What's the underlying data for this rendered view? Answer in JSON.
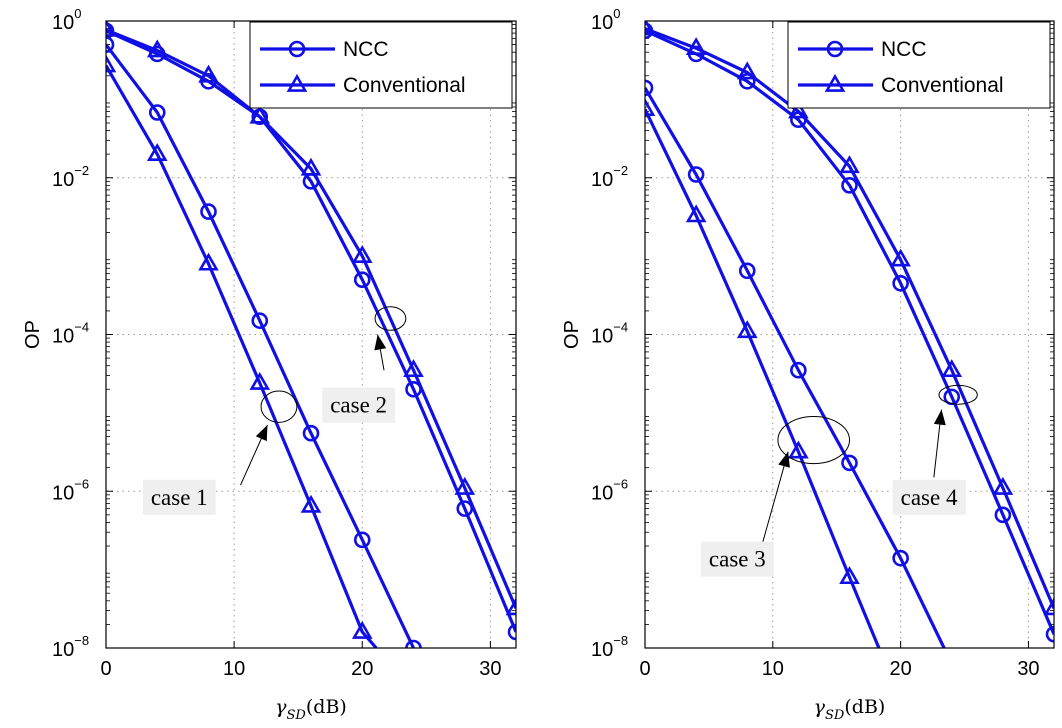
{
  "chart_data": [
    {
      "type": "line",
      "panel": "left",
      "ylabel": "OP",
      "xlabel": "γSD(dB)",
      "xlabel_parts": [
        "γ",
        "SD",
        "(dB)"
      ],
      "xlim": [
        0,
        32
      ],
      "ylim": [
        1e-08,
        1
      ],
      "yscale": "log",
      "grid": true,
      "legend_position": "top-right",
      "xticks": [
        0,
        10,
        20,
        30
      ],
      "yticks": [
        {
          "value": 1,
          "base": "10",
          "exp": "0"
        },
        {
          "value": 0.01,
          "base": "10",
          "exp": "−2"
        },
        {
          "value": 0.0001,
          "base": "10",
          "exp": "−4"
        },
        {
          "value": 1e-06,
          "base": "10",
          "exp": "−6"
        },
        {
          "value": 1e-08,
          "base": "10",
          "exp": "−8"
        }
      ],
      "series": [
        {
          "name": "NCC",
          "marker": "circle",
          "x": [
            0,
            4,
            8,
            12,
            16,
            20,
            24,
            28,
            32
          ],
          "y": [
            0.75,
            0.38,
            0.17,
            0.06,
            0.009,
            0.0005,
            2e-05,
            6e-07,
            1.6e-08
          ],
          "legend": true
        },
        {
          "name": "Conventional",
          "marker": "triangle",
          "x": [
            0,
            4,
            8,
            12,
            16,
            20,
            24,
            28,
            32
          ],
          "y": [
            0.77,
            0.42,
            0.2,
            0.06,
            0.013,
            0.001,
            3.5e-05,
            1.1e-06,
            3.2e-08
          ],
          "legend": true
        },
        {
          "name": "NCC",
          "marker": "circle",
          "x": [
            0,
            4,
            8,
            12,
            16,
            20,
            24
          ],
          "y": [
            0.5,
            0.068,
            0.0037,
            0.00015,
            5.5e-06,
            2.4e-07,
            1e-08
          ],
          "legend": false
        },
        {
          "name": "Conventional",
          "marker": "triangle",
          "x": [
            0,
            4,
            8,
            12,
            16,
            20,
            21.1
          ],
          "y": [
            0.27,
            0.02,
            0.0008,
            2.4e-05,
            6.5e-07,
            1.6e-08,
            1e-08
          ],
          "legend": false
        }
      ],
      "annotations": [
        {
          "text": "case 1",
          "ellipse": {
            "x": 13.5,
            "y": 1.2e-05,
            "rx": 1.4,
            "ry_dec": 0.2
          },
          "arrow_tip": {
            "x": 12.6,
            "y": 7e-06
          },
          "arrow_tail": {
            "x": 10.5,
            "y": 1.2e-06
          },
          "label": {
            "x": 3.5,
            "y": 8e-07
          }
        },
        {
          "text": "case 2",
          "ellipse": {
            "x": 22.2,
            "y": 0.00016,
            "rx": 1.2,
            "ry_dec": 0.15
          },
          "arrow_tip": {
            "x": 21.2,
            "y": 0.0001
          },
          "arrow_tail": {
            "x": 21.7,
            "y": 3.5e-05
          },
          "label": {
            "x": 17.5,
            "y": 1.2e-05
          }
        }
      ]
    },
    {
      "type": "line",
      "panel": "right",
      "ylabel": "OP",
      "xlabel": "γSD(dB)",
      "xlabel_parts": [
        "γ",
        "SD",
        "(dB)"
      ],
      "xlim": [
        0,
        32
      ],
      "ylim": [
        1e-08,
        1
      ],
      "yscale": "log",
      "grid": true,
      "legend_position": "top-right",
      "xticks": [
        0,
        10,
        20,
        30
      ],
      "yticks": [
        {
          "value": 1,
          "base": "10",
          "exp": "0"
        },
        {
          "value": 0.01,
          "base": "10",
          "exp": "−2"
        },
        {
          "value": 0.0001,
          "base": "10",
          "exp": "−4"
        },
        {
          "value": 1e-06,
          "base": "10",
          "exp": "−6"
        },
        {
          "value": 1e-08,
          "base": "10",
          "exp": "−8"
        }
      ],
      "series": [
        {
          "name": "NCC",
          "marker": "circle",
          "x": [
            0,
            4,
            8,
            12,
            16,
            20,
            24,
            28,
            32
          ],
          "y": [
            0.75,
            0.38,
            0.17,
            0.055,
            0.008,
            0.00045,
            1.6e-05,
            5e-07,
            1.5e-08
          ],
          "legend": true
        },
        {
          "name": "Conventional",
          "marker": "triangle",
          "x": [
            0,
            4,
            8,
            12,
            16,
            20,
            24,
            28,
            32
          ],
          "y": [
            0.8,
            0.45,
            0.22,
            0.07,
            0.014,
            0.0009,
            3.5e-05,
            1.1e-06,
            3.2e-08
          ],
          "legend": true
        },
        {
          "name": "NCC",
          "marker": "circle",
          "x": [
            0,
            4,
            8,
            12,
            16,
            20,
            23.4
          ],
          "y": [
            0.14,
            0.011,
            0.00065,
            3.5e-05,
            2.3e-06,
            1.4e-07,
            1e-08
          ],
          "legend": false
        },
        {
          "name": "Conventional",
          "marker": "triangle",
          "x": [
            0,
            4,
            8,
            12,
            16,
            18.3
          ],
          "y": [
            0.075,
            0.0033,
            0.00011,
            3.2e-06,
            8e-08,
            1e-08
          ],
          "legend": false
        }
      ],
      "annotations": [
        {
          "text": "case 3",
          "ellipse": {
            "x": 13.2,
            "y": 4.5e-06,
            "rx": 2.8,
            "ry_dec": 0.3
          },
          "arrow_tip": {
            "x": 11.2,
            "y": 3.2e-06
          },
          "arrow_tail": {
            "x": 9.2,
            "y": 2.2e-07
          },
          "label": {
            "x": 5,
            "y": 1.3e-07
          }
        },
        {
          "text": "case 4",
          "ellipse": {
            "x": 24.5,
            "y": 1.7e-05,
            "rx": 1.5,
            "ry_dec": 0.12
          },
          "arrow_tip": {
            "x": 23.2,
            "y": 1.1e-05
          },
          "arrow_tail": {
            "x": 22.6,
            "y": 1.5e-06
          },
          "label": {
            "x": 20,
            "y": 8e-07
          }
        }
      ]
    }
  ],
  "colors": {
    "series": "#1010e6",
    "annotation_box": "#efefef",
    "grid": "#9a9a9a"
  }
}
